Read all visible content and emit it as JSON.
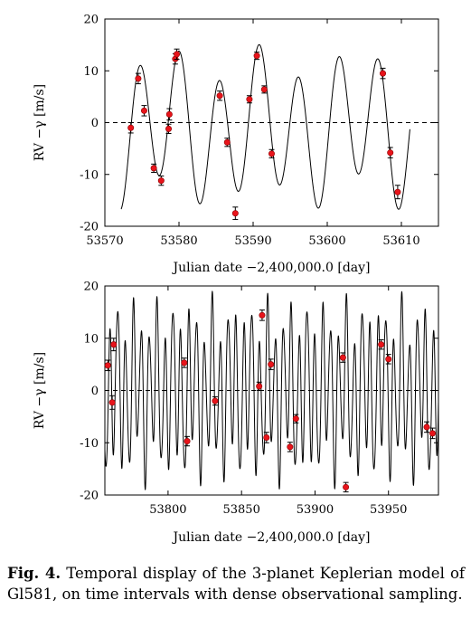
{
  "caption": {
    "label": "Fig. 4.",
    "text": "Temporal display of the 3-planet Keplerian model of Gl581, on time intervals with dense observational sampling."
  },
  "colors": {
    "points": "#e8141b",
    "model": "#000000"
  },
  "chart_data": [
    {
      "type": "line",
      "xlabel": "Julian date −2,400,000.0 [day]",
      "ylabel": "RV −γ [m/s]",
      "xlim": [
        53570,
        53615
      ],
      "ylim": [
        -20,
        20
      ],
      "xticks": [
        53570,
        53580,
        53590,
        53600,
        53610
      ],
      "yticks": [
        -20,
        -10,
        0,
        10,
        20
      ],
      "reference_line": {
        "y": 0,
        "style": "dashed"
      },
      "model_range": [
        53572.2,
        53611.2
      ],
      "observations": [
        {
          "x": 53573.5,
          "y": -1.0,
          "err": 1.0
        },
        {
          "x": 53574.5,
          "y": 8.5,
          "err": 1.0
        },
        {
          "x": 53575.3,
          "y": 2.3,
          "err": 1.0
        },
        {
          "x": 53576.6,
          "y": -8.8,
          "err": 0.8
        },
        {
          "x": 53577.6,
          "y": -11.2,
          "err": 0.9
        },
        {
          "x": 53578.6,
          "y": -1.2,
          "err": 0.9
        },
        {
          "x": 53578.7,
          "y": 1.6,
          "err": 1.1
        },
        {
          "x": 53579.5,
          "y": 12.3,
          "err": 1.0
        },
        {
          "x": 53579.7,
          "y": 13.2,
          "err": 1.0
        },
        {
          "x": 53585.5,
          "y": 5.2,
          "err": 0.9
        },
        {
          "x": 53586.5,
          "y": -3.8,
          "err": 0.8
        },
        {
          "x": 53587.6,
          "y": -17.5,
          "err": 1.2
        },
        {
          "x": 53589.5,
          "y": 4.5,
          "err": 0.7
        },
        {
          "x": 53590.5,
          "y": 12.9,
          "err": 0.7
        },
        {
          "x": 53591.5,
          "y": 6.4,
          "err": 0.7
        },
        {
          "x": 53592.5,
          "y": -6.0,
          "err": 0.8
        },
        {
          "x": 53607.5,
          "y": 9.5,
          "err": 1.0
        },
        {
          "x": 53608.5,
          "y": -5.8,
          "err": 1.0
        },
        {
          "x": 53609.5,
          "y": -13.4,
          "err": 1.3
        }
      ]
    },
    {
      "type": "line",
      "xlabel": "Julian date −2,400,000.0 [day]",
      "ylabel": "RV −γ [m/s]",
      "xlim": [
        53757,
        53984
      ],
      "ylim": [
        -20,
        20
      ],
      "xticks": [
        53800,
        53850,
        53900,
        53950
      ],
      "yticks": [
        -20,
        -10,
        0,
        10,
        20
      ],
      "reference_line": {
        "y": 0,
        "style": "dashed"
      },
      "model_range": [
        53757,
        53984
      ],
      "observations": [
        {
          "x": 53759,
          "y": 4.8,
          "err": 1.0
        },
        {
          "x": 53762,
          "y": -2.3,
          "err": 1.3
        },
        {
          "x": 53763,
          "y": 8.8,
          "err": 1.2
        },
        {
          "x": 53811,
          "y": 5.3,
          "err": 0.9
        },
        {
          "x": 53813,
          "y": -9.7,
          "err": 0.9
        },
        {
          "x": 53832,
          "y": -2.0,
          "err": 0.8
        },
        {
          "x": 53862,
          "y": 0.8,
          "err": 0.8
        },
        {
          "x": 53864,
          "y": 14.4,
          "err": 1.0
        },
        {
          "x": 53867,
          "y": -9.0,
          "err": 1.0
        },
        {
          "x": 53870,
          "y": 5.0,
          "err": 1.0
        },
        {
          "x": 53883,
          "y": -10.8,
          "err": 0.9
        },
        {
          "x": 53887,
          "y": -5.4,
          "err": 0.8
        },
        {
          "x": 53919,
          "y": 6.3,
          "err": 0.9
        },
        {
          "x": 53921,
          "y": -18.5,
          "err": 0.9
        },
        {
          "x": 53945,
          "y": 8.8,
          "err": 0.9
        },
        {
          "x": 53950,
          "y": 6.0,
          "err": 0.9
        },
        {
          "x": 53976,
          "y": -7.0,
          "err": 1.0
        },
        {
          "x": 53980,
          "y": -8.2,
          "err": 1.0
        }
      ]
    }
  ]
}
